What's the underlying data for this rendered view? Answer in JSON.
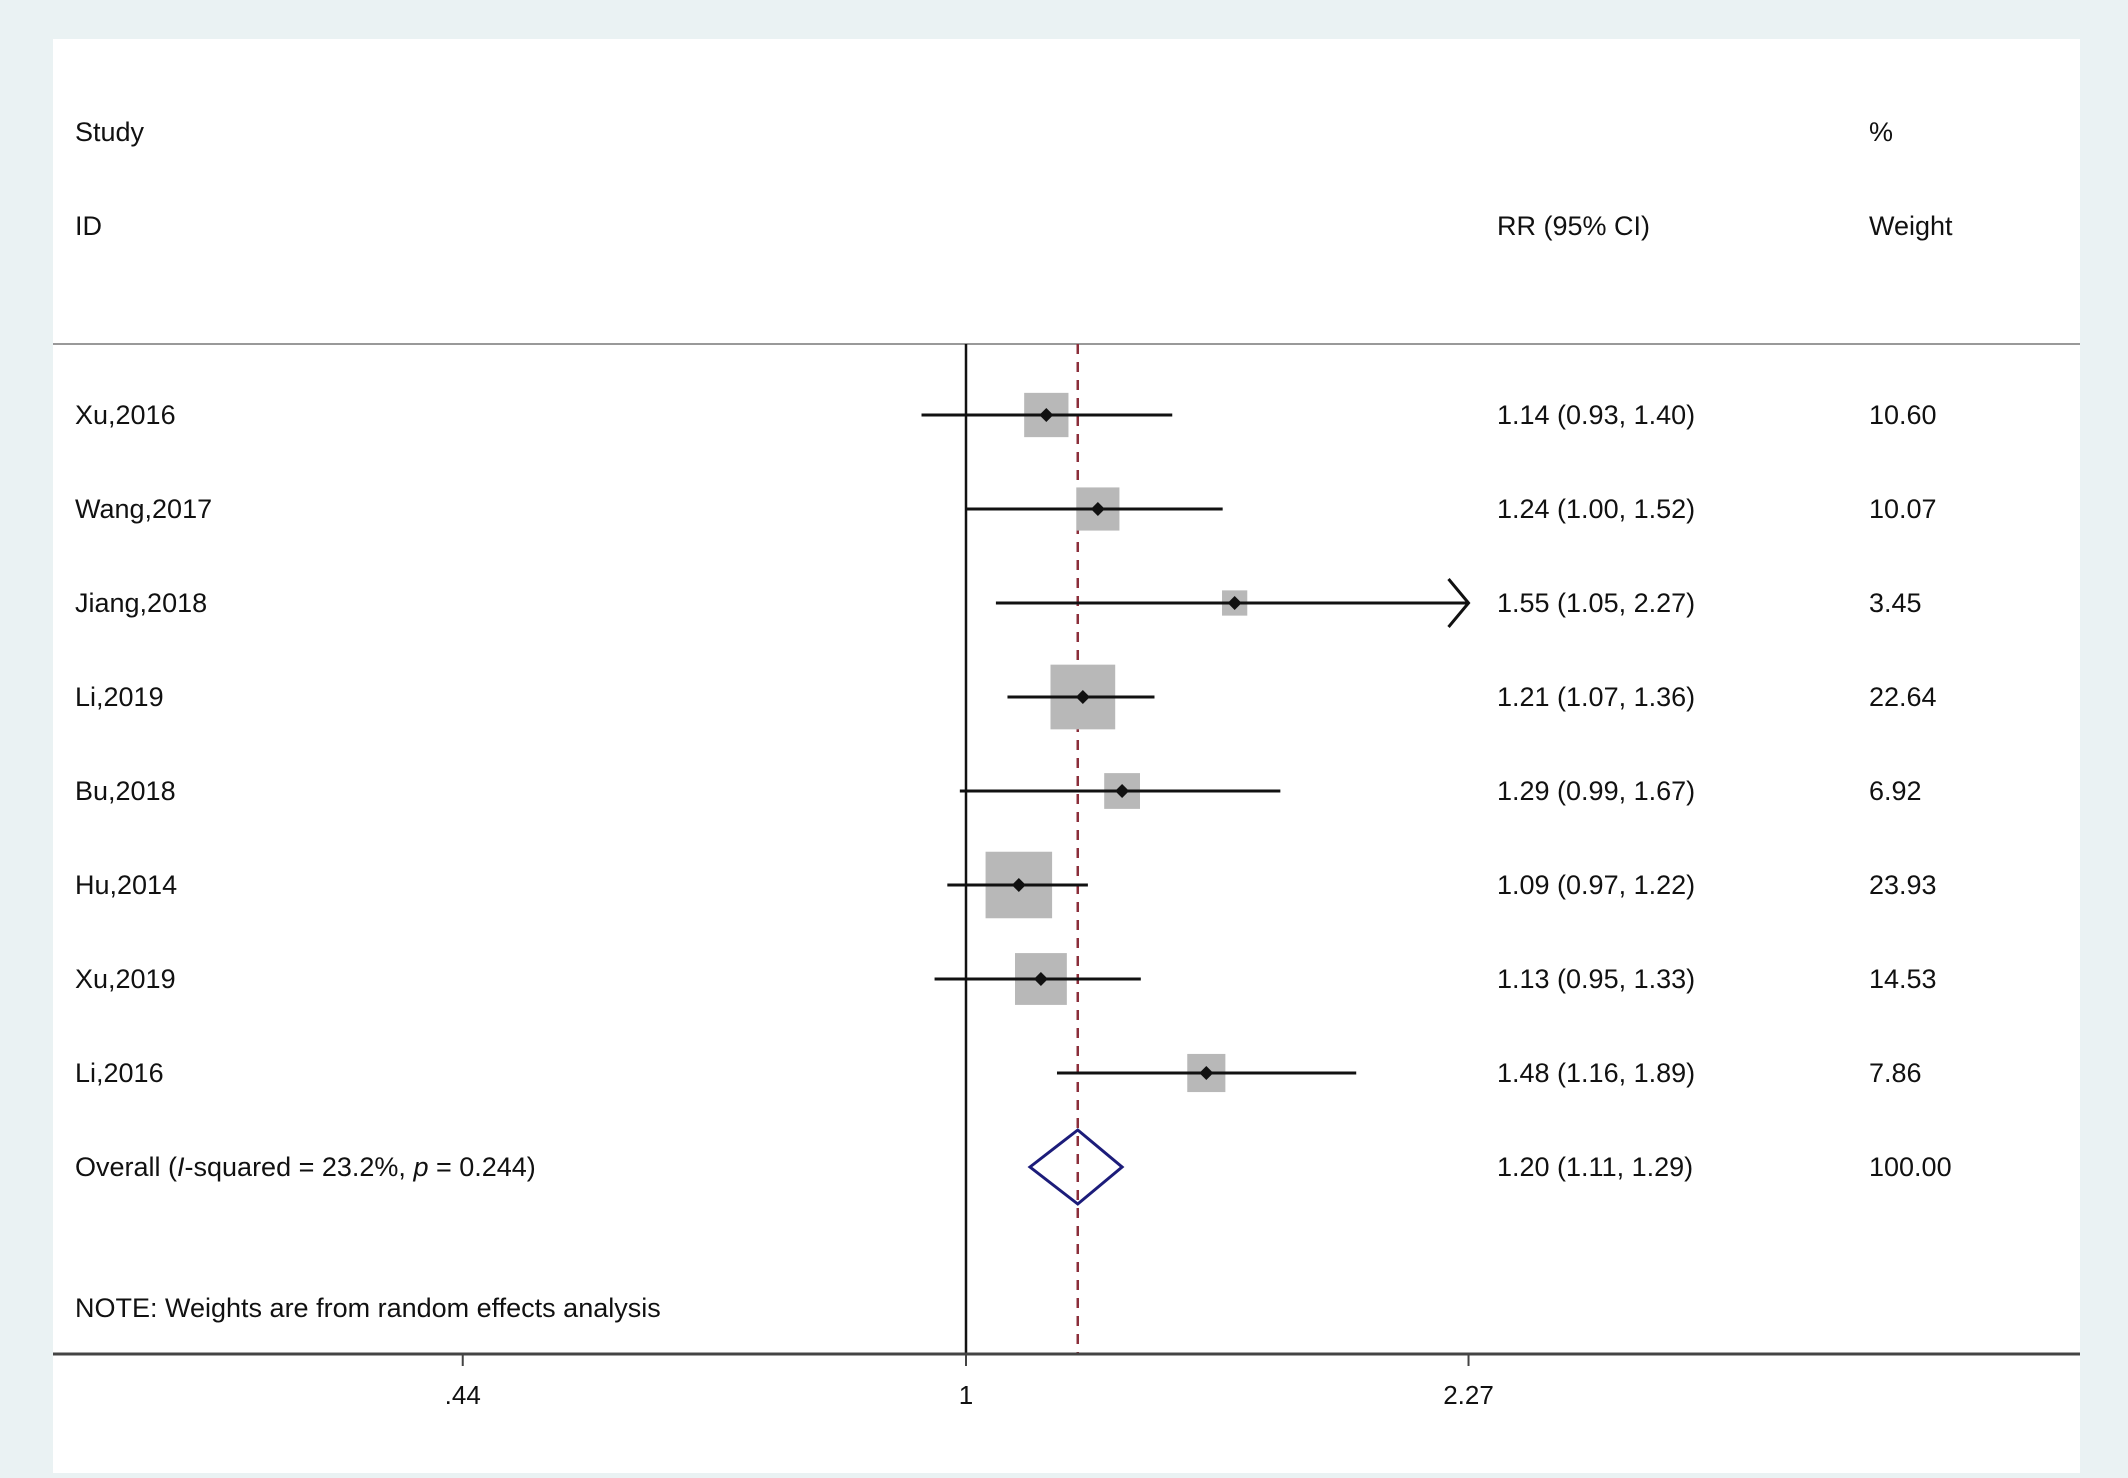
{
  "chart_data": {
    "type": "forest",
    "header": {
      "study_line1": "Study",
      "study_line2": "ID",
      "effect_label": "RR (95% CI)",
      "weight_line1": "%",
      "weight_line2": "Weight"
    },
    "x_scale": "log",
    "xticks": [
      {
        "value": 0.44,
        "label": ".44"
      },
      {
        "value": 1,
        "label": "1"
      },
      {
        "value": 2.27,
        "label": "2.27"
      }
    ],
    "null_line": 1,
    "pooled_line": 1.2,
    "studies": [
      {
        "name": "Xu,2016",
        "rr": 1.14,
        "lower": 0.93,
        "upper": 1.4,
        "ci_text": "1.14 (0.93, 1.40)",
        "weight": 10.6,
        "weight_text": "10.60"
      },
      {
        "name": "Wang,2017",
        "rr": 1.24,
        "lower": 1.0,
        "upper": 1.52,
        "ci_text": "1.24 (1.00, 1.52)",
        "weight": 10.07,
        "weight_text": "10.07"
      },
      {
        "name": "Jiang,2018",
        "rr": 1.55,
        "lower": 1.05,
        "upper": 2.27,
        "ci_text": "1.55 (1.05, 2.27)",
        "weight": 3.45,
        "weight_text": "3.45",
        "arrow": true
      },
      {
        "name": "Li,2019",
        "rr": 1.21,
        "lower": 1.07,
        "upper": 1.36,
        "ci_text": "1.21 (1.07, 1.36)",
        "weight": 22.64,
        "weight_text": "22.64"
      },
      {
        "name": "Bu,2018",
        "rr": 1.29,
        "lower": 0.99,
        "upper": 1.67,
        "ci_text": "1.29 (0.99, 1.67)",
        "weight": 6.92,
        "weight_text": "6.92"
      },
      {
        "name": "Hu,2014",
        "rr": 1.09,
        "lower": 0.97,
        "upper": 1.22,
        "ci_text": "1.09 (0.97, 1.22)",
        "weight": 23.93,
        "weight_text": "23.93"
      },
      {
        "name": "Xu,2019",
        "rr": 1.13,
        "lower": 0.95,
        "upper": 1.33,
        "ci_text": "1.13 (0.95, 1.33)",
        "weight": 14.53,
        "weight_text": "14.53"
      },
      {
        "name": "Li,2016",
        "rr": 1.48,
        "lower": 1.16,
        "upper": 1.89,
        "ci_text": "1.48 (1.16, 1.89)",
        "weight": 7.86,
        "weight_text": "7.86"
      }
    ],
    "overall": {
      "label_prefix": "Overall  (",
      "label_i": "I",
      "label_mid": "-squared = 23.2%, ",
      "label_p": "p",
      "label_suffix": " = 0.244)",
      "rr": 1.2,
      "lower": 1.11,
      "upper": 1.29,
      "ci_text": "1.20 (1.11, 1.29)",
      "weight_text": "100.00"
    },
    "note": "NOTE: Weights are from random effects analysis",
    "colors": {
      "line": "#111111",
      "box": "#b8b8b8",
      "diamond": "#1c1c7a",
      "pooled_line": "#8b2e3a",
      "frame": "#444444"
    }
  }
}
